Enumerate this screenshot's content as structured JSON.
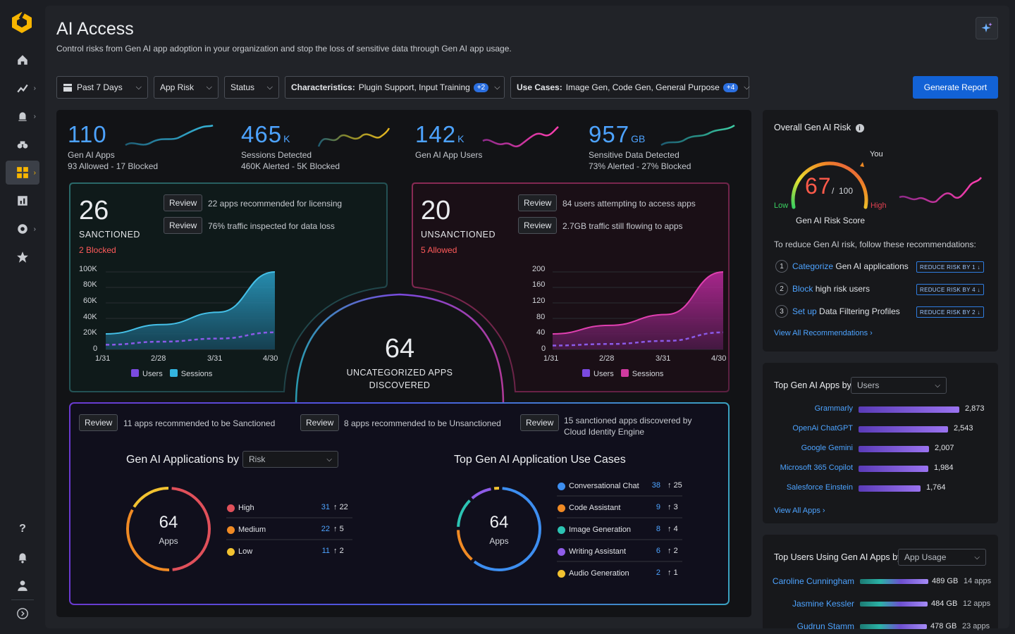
{
  "page": {
    "title": "AI Access",
    "subtitle": "Control risks from Gen AI app adoption in your organization and stop the loss of sensitive data through Gen AI app usage."
  },
  "filters": {
    "period": "Past 7 Days",
    "app_risk": "App Risk",
    "status": "Status",
    "characteristics_label": "Characteristics:",
    "characteristics_value": "Plugin Support, Input Training",
    "characteristics_more": "+2",
    "usecases_label": "Use Cases:",
    "usecases_value": "Image Gen, Code Gen, General Purpose",
    "usecases_more": "+4",
    "generate": "Generate Report"
  },
  "kpis": [
    {
      "value": "110",
      "unit": "",
      "label": "Gen AI Apps",
      "sub": "93 Allowed - 17 Blocked",
      "color": "#4da3ff"
    },
    {
      "value": "465",
      "unit": "K",
      "label": "Sessions Detected",
      "sub": "460K Alerted - 5K Blocked",
      "color": "#4da3ff"
    },
    {
      "value": "142",
      "unit": "K",
      "label": "Gen AI App Users",
      "sub": "",
      "color": "#4da3ff"
    },
    {
      "value": "957",
      "unit": "GB",
      "label": "Sensitive Data Detected",
      "sub": "73% Alerted - 27% Blocked",
      "color": "#4da3ff"
    }
  ],
  "sanctioned": {
    "count": "26",
    "label": "SANCTIONED",
    "note": "2 Blocked",
    "review": "Review",
    "rec1": "22 apps recommended for licensing",
    "rec2": "76% traffic inspected for data loss",
    "chart": {
      "yticks": [
        "100K",
        "80K",
        "60K",
        "40K",
        "20K",
        "0"
      ],
      "xticks": [
        "1/31",
        "2/28",
        "3/31",
        "4/30"
      ],
      "legend_users": "Users",
      "legend_sessions": "Sessions"
    }
  },
  "unsanctioned": {
    "count": "20",
    "label": "UNSANCTIONED",
    "note": "5 Allowed",
    "review": "Review",
    "rec1": "84 users attempting to access apps",
    "rec2": "2.7GB traffic still flowing to apps",
    "chart": {
      "yticks": [
        "200",
        "160",
        "120",
        "80",
        "40",
        "0"
      ],
      "xticks": [
        "1/31",
        "2/28",
        "3/31",
        "4/30"
      ],
      "legend_users": "Users",
      "legend_sessions": "Sessions"
    }
  },
  "uncategorized": {
    "count": "64",
    "line1": "UNCATEGORIZED APPS",
    "line2": "DISCOVERED"
  },
  "chart_data": [
    {
      "type": "area",
      "title": "Sanctioned",
      "x": [
        "1/31",
        "2/28",
        "3/31",
        "4/30"
      ],
      "ylim": [
        0,
        100000
      ],
      "series": [
        {
          "name": "Sessions",
          "values": [
            20000,
            32000,
            48000,
            100000
          ]
        },
        {
          "name": "Users",
          "values": [
            6000,
            10000,
            14000,
            22000
          ]
        }
      ]
    },
    {
      "type": "area",
      "title": "Unsanctioned",
      "x": [
        "1/31",
        "2/28",
        "3/31",
        "4/30"
      ],
      "ylim": [
        0,
        200
      ],
      "series": [
        {
          "name": "Sessions",
          "values": [
            40,
            62,
            90,
            200
          ]
        },
        {
          "name": "Users",
          "values": [
            10,
            14,
            22,
            44
          ]
        }
      ]
    }
  ],
  "reviews": [
    {
      "btn": "Review",
      "text": "11 apps recommended to be Sanctioned"
    },
    {
      "btn": "Review",
      "text": "8 apps recommended to be Unsanctioned"
    },
    {
      "btn": "Review",
      "text": "15 sanctioned apps discovered by",
      "text2": "Cloud Identity Engine"
    }
  ],
  "apps_by": {
    "title": "Gen AI Applications by",
    "select": "Risk",
    "total": "64",
    "total_label": "Apps",
    "rows": [
      {
        "name": "High",
        "count": "31",
        "change": "22",
        "color": "#e0505a"
      },
      {
        "name": "Medium",
        "count": "22",
        "change": "5",
        "color": "#f08a24"
      },
      {
        "name": "Low",
        "count": "11",
        "change": "2",
        "color": "#f2c230"
      }
    ]
  },
  "use_cases": {
    "title": "Top Gen AI Application Use Cases",
    "total": "64",
    "total_label": "Apps",
    "rows": [
      {
        "name": "Conversational Chat",
        "count": "38",
        "change": "25",
        "color": "#3d8ef0"
      },
      {
        "name": "Code Assistant",
        "count": "9",
        "change": "3",
        "color": "#f08a24"
      },
      {
        "name": "Image Generation",
        "count": "8",
        "change": "4",
        "color": "#2cc3b3"
      },
      {
        "name": "Writing Assistant",
        "count": "6",
        "change": "2",
        "color": "#8e5ce8"
      },
      {
        "name": "Audio Generation",
        "count": "2",
        "change": "1",
        "color": "#f2c230"
      }
    ]
  },
  "risk": {
    "title": "Overall Gen AI Risk",
    "score": "67",
    "max": "100",
    "separator": "/",
    "low": "Low",
    "high": "High",
    "you": "You",
    "label": "Gen AI Risk Score",
    "intro": "To reduce Gen AI risk, follow these recommendations:",
    "recs": [
      {
        "n": "1",
        "action": "Categorize",
        "rest": "Gen AI applications",
        "badge": "REDUCE RISK BY 1"
      },
      {
        "n": "2",
        "action": "Block",
        "rest": "high risk users",
        "badge": "REDUCE RISK BY 4"
      },
      {
        "n": "3",
        "action": "Set up",
        "rest": "Data Filtering Profiles",
        "badge": "REDUCE RISK BY 2"
      }
    ],
    "view_all": "View All Recommendations"
  },
  "top_apps": {
    "title": "Top Gen AI Apps by",
    "select": "Users",
    "view_all": "View All Apps",
    "rows": [
      {
        "name": "Grammarly",
        "value": 2873,
        "label": "2,873"
      },
      {
        "name": "OpenAi ChatGPT",
        "value": 2543,
        "label": "2,543"
      },
      {
        "name": "Google Gemini",
        "value": 2007,
        "label": "2,007"
      },
      {
        "name": "Microsoft 365 Copilot",
        "value": 1984,
        "label": "1,984"
      },
      {
        "name": "Salesforce Einstein",
        "value": 1764,
        "label": "1,764"
      }
    ]
  },
  "top_users": {
    "title": "Top Users Using Gen AI Apps by",
    "select": "App Usage",
    "rows": [
      {
        "name": "Caroline Cunningham",
        "value": 489,
        "size": "489 GB",
        "apps": "14 apps"
      },
      {
        "name": "Jasmine Kessler",
        "value": 484,
        "size": "484 GB",
        "apps": "12 apps"
      },
      {
        "name": "Gudrun Stamm",
        "value": 478,
        "size": "478 GB",
        "apps": "23 apps"
      }
    ]
  }
}
